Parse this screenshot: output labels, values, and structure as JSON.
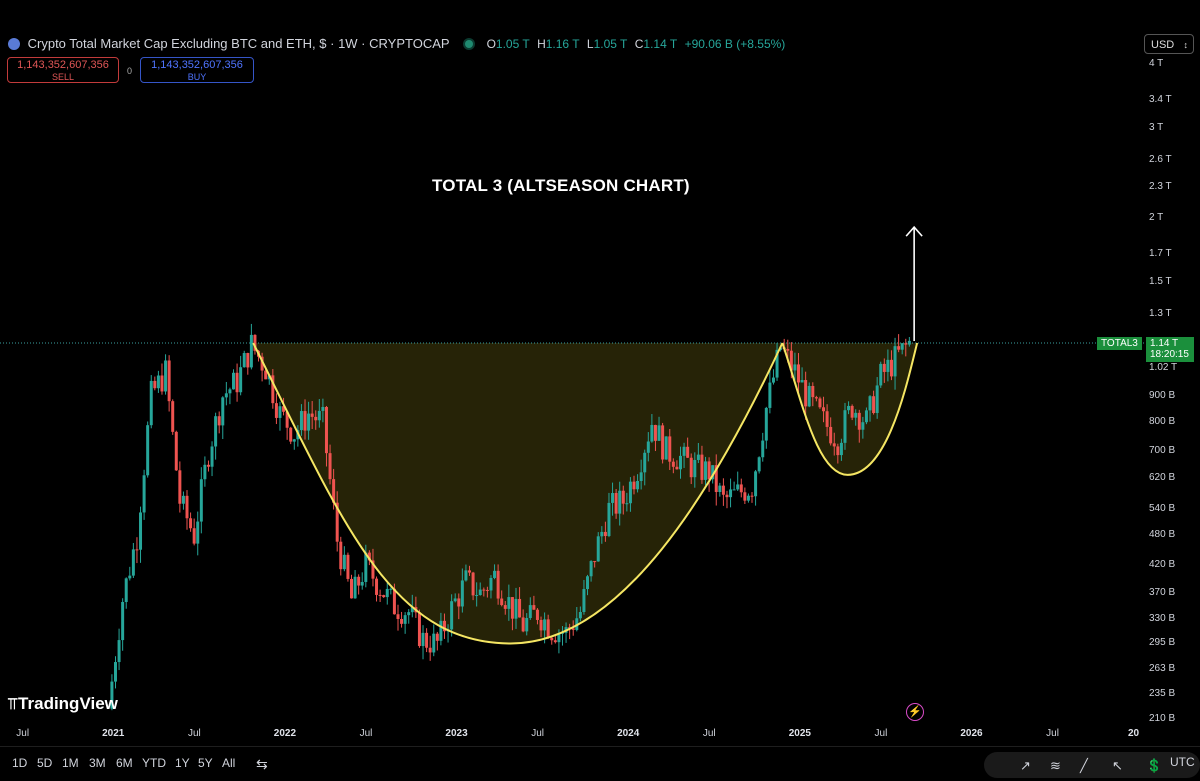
{
  "header": {
    "symbol_title": "Crypto Total Market Cap Excluding BTC and ETH, $ · 1W · CRYPTOCAP",
    "ohlc": [
      {
        "key": "O",
        "value": "1.05 T"
      },
      {
        "key": "H",
        "value": "1.16 T"
      },
      {
        "key": "L",
        "value": "1.05 T"
      },
      {
        "key": "C",
        "value": "1.14 T"
      }
    ],
    "change": "+90.06 B (+8.55%)",
    "sell_price": "1,143,352,607,356",
    "sell_label": "SELL",
    "buy_price": "1,143,352,607,356",
    "buy_label": "BUY",
    "spread": "0",
    "currency": "USD"
  },
  "branding": "TradingView",
  "last_price": {
    "symbol": "TOTAL3",
    "price": "1.14 T",
    "countdown": "18:20:15"
  },
  "toolbar": {
    "timeframes": [
      "1D",
      "5D",
      "1M",
      "3M",
      "6M",
      "YTD",
      "1Y",
      "5Y",
      "All"
    ],
    "timezone": "UTC"
  },
  "colors": {
    "up": "#26a69a",
    "down": "#ef5350",
    "curve": "#f5e663",
    "fill": "#2a2708",
    "arrow": "#ffffff"
  },
  "chart_data": {
    "type": "candlestick",
    "title": "TOTAL 3 (ALTSEASON CHART)",
    "scale": "log",
    "ylim": [
      210,
      4000
    ],
    "y_ticks": [
      "4 T",
      "3.4 T",
      "3 T",
      "2.6 T",
      "2.3 T",
      "2 T",
      "1.7 T",
      "1.5 T",
      "1.3 T",
      "1.02 T",
      "900 B",
      "800 B",
      "700 B",
      "620 B",
      "540 B",
      "480 B",
      "420 B",
      "370 B",
      "330 B",
      "295 B",
      "263 B",
      "235 B",
      "210 B"
    ],
    "y_tick_values": [
      4000,
      3400,
      3000,
      2600,
      2300,
      2000,
      1700,
      1500,
      1300,
      1020,
      900,
      800,
      700,
      620,
      540,
      480,
      420,
      370,
      330,
      295,
      263,
      235,
      210
    ],
    "x_ticks": [
      "Jul",
      "2021",
      "Jul",
      "2022",
      "Jul",
      "2023",
      "Jul",
      "2024",
      "Jul",
      "2025",
      "Jul",
      "2026",
      "Jul",
      "20"
    ],
    "x_tick_dates": [
      "2020-07",
      "2021-01",
      "2021-07",
      "2022-01",
      "2022-07",
      "2023-01",
      "2023-07",
      "2024-01",
      "2024-07",
      "2025-01",
      "2025-07",
      "2026-01",
      "2026-07",
      "2027-01"
    ],
    "xlim": [
      "2020-06",
      "2027-01"
    ],
    "price_path": [
      [
        "2021-01",
        220
      ],
      [
        "2021-02",
        360
      ],
      [
        "2021-03",
        480
      ],
      [
        "2021-04",
        900
      ],
      [
        "2021-05",
        1000
      ],
      [
        "2021-06",
        560
      ],
      [
        "2021-07",
        480
      ],
      [
        "2021-08",
        700
      ],
      [
        "2021-09",
        900
      ],
      [
        "2021-10",
        960
      ],
      [
        "2021-11",
        1130
      ],
      [
        "2021-12",
        1020
      ],
      [
        "2022-01",
        830
      ],
      [
        "2022-02",
        760
      ],
      [
        "2022-03",
        830
      ],
      [
        "2022-04",
        800
      ],
      [
        "2022-05",
        470
      ],
      [
        "2022-06",
        360
      ],
      [
        "2022-07",
        420
      ],
      [
        "2022-08",
        380
      ],
      [
        "2022-09",
        350
      ],
      [
        "2022-10",
        340
      ],
      [
        "2022-11",
        300
      ],
      [
        "2022-12",
        295
      ],
      [
        "2023-01",
        345
      ],
      [
        "2023-02",
        390
      ],
      [
        "2023-03",
        370
      ],
      [
        "2023-04",
        400
      ],
      [
        "2023-05",
        355
      ],
      [
        "2023-06",
        320
      ],
      [
        "2023-07",
        340
      ],
      [
        "2023-08",
        315
      ],
      [
        "2023-09",
        310
      ],
      [
        "2023-10",
        340
      ],
      [
        "2023-11",
        440
      ],
      [
        "2023-12",
        540
      ],
      [
        "2024-01",
        560
      ],
      [
        "2024-02",
        650
      ],
      [
        "2024-03",
        800
      ],
      [
        "2024-04",
        700
      ],
      [
        "2024-05",
        680
      ],
      [
        "2024-06",
        650
      ],
      [
        "2024-07",
        640
      ],
      [
        "2024-08",
        560
      ],
      [
        "2024-09",
        580
      ],
      [
        "2024-10",
        600
      ],
      [
        "2024-11",
        850
      ],
      [
        "2024-12",
        1120
      ],
      [
        "2025-01",
        1000
      ],
      [
        "2025-02",
        880
      ],
      [
        "2025-03",
        800
      ],
      [
        "2025-04",
        740
      ],
      [
        "2025-05",
        860
      ],
      [
        "2025-06",
        800
      ],
      [
        "2025-07",
        980
      ],
      [
        "2025-08",
        1060
      ],
      [
        "2025-09",
        1140
      ]
    ],
    "annotations": {
      "resistance": 1140,
      "cup": {
        "start": [
          "2021-11",
          1140
        ],
        "bottom": [
          "2023-05",
          295
        ],
        "end": [
          "2024-12",
          1140
        ]
      },
      "handle": {
        "start": [
          "2024-12",
          1140
        ],
        "bottom": [
          "2025-04",
          630
        ],
        "end": [
          "2025-09",
          1140
        ]
      },
      "arrow": {
        "from": [
          "2025-09",
          1140
        ],
        "to": [
          "2025-09",
          1920
        ]
      }
    }
  }
}
